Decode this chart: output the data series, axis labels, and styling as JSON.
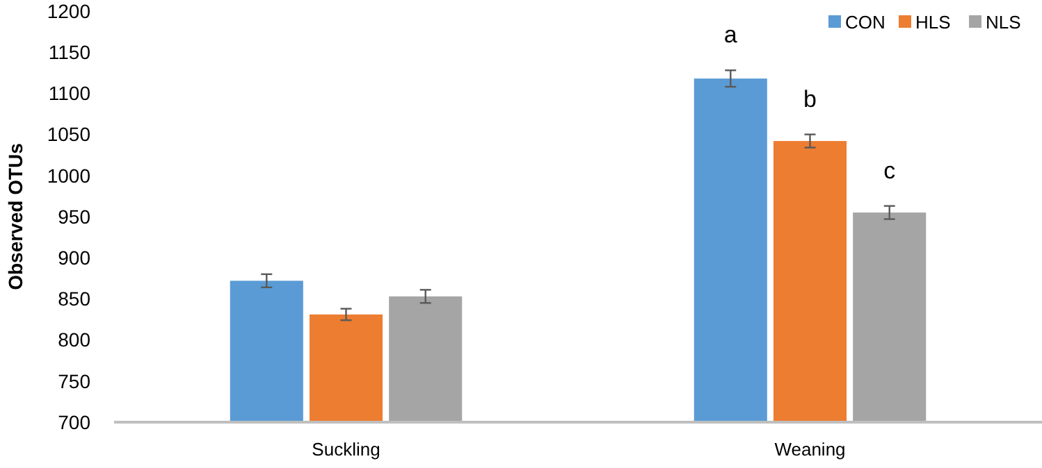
{
  "chart_data": {
    "type": "bar",
    "ylabel": "Observed OTUs",
    "categories": [
      "Suckling",
      "Weaning"
    ],
    "series": [
      {
        "name": "CON",
        "color": "#5b9bd5",
        "values": [
          872,
          1118
        ],
        "errors": [
          8,
          10
        ]
      },
      {
        "name": "HLS",
        "color": "#ed7d31",
        "values": [
          831,
          1042
        ],
        "errors": [
          7,
          8
        ]
      },
      {
        "name": "NLS",
        "color": "#a5a5a5",
        "values": [
          853,
          955
        ],
        "errors": [
          8,
          8
        ]
      }
    ],
    "ylim": [
      700,
      1200
    ],
    "yticks": [
      700,
      750,
      800,
      850,
      900,
      950,
      1000,
      1050,
      1100,
      1150,
      1200
    ],
    "grid": false,
    "legend": "top right",
    "annotations": [
      "a",
      "b",
      "c"
    ]
  }
}
